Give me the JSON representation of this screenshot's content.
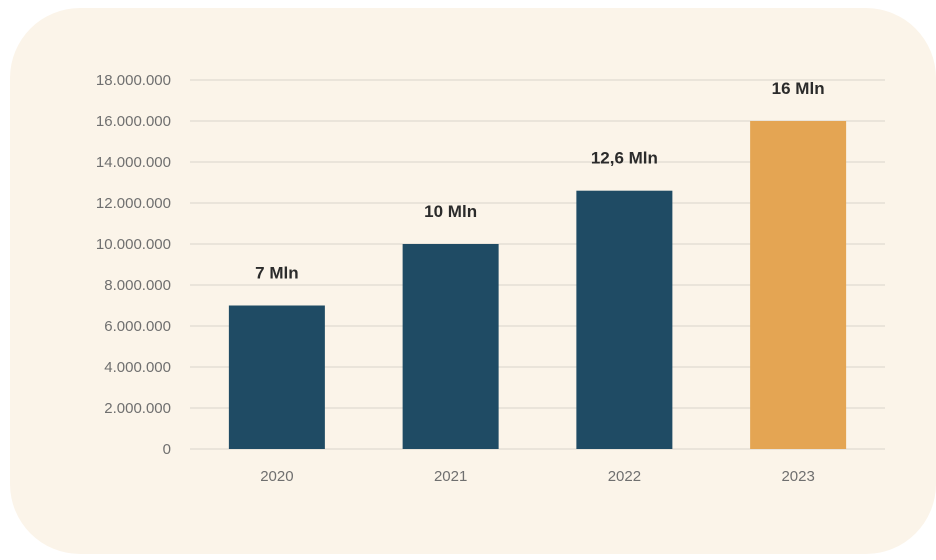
{
  "chart_data": {
    "type": "bar",
    "categories": [
      "2020",
      "2021",
      "2022",
      "2023"
    ],
    "values": [
      7000000,
      10000000,
      12600000,
      16000000
    ],
    "data_labels": [
      "7 Mln",
      "10 Mln",
      "12,6 Mln",
      "16 Mln"
    ],
    "y_tick_labels": [
      "0",
      "2.000.000",
      "4.000.000",
      "6.000.000",
      "8.000.000",
      "10.000.000",
      "12.000.000",
      "14.000.000",
      "16.000.000",
      "18.000.000"
    ],
    "y_ticks": [
      0,
      2000000,
      4000000,
      6000000,
      8000000,
      10000000,
      12000000,
      14000000,
      16000000,
      18000000
    ],
    "ylim": [
      0,
      18000000
    ],
    "title": "",
    "xlabel": "",
    "ylabel": "",
    "grid": true,
    "legend": "none",
    "bar_colors": [
      "#1f4b64",
      "#1f4b64",
      "#1f4b64",
      "#e4a553"
    ],
    "card_color": "#fbf4e9"
  }
}
